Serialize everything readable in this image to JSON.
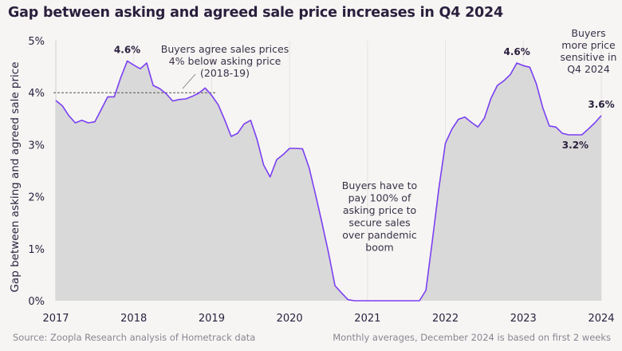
{
  "title": "Gap between asking and agreed sale price increases in Q4 2024",
  "footer": {
    "source": "Source: Zoopla Research analysis of Hometrack data",
    "note": "Monthly averages, December 2024 is based on first 2 weeks"
  },
  "colors": {
    "line": "#7b3ff2",
    "area": "#d9d9d9",
    "grid": "#e4e3e1",
    "reference_line": "#555555",
    "background": "#f6f5f3"
  },
  "chart_data": {
    "type": "area",
    "title": "Gap between asking and agreed sale price increases in Q4 2024",
    "xlabel": "",
    "ylabel": "Gap between asking and agreed sale price",
    "ylim": [
      0,
      5
    ],
    "yticks": [
      0,
      1,
      2,
      3,
      4,
      5
    ],
    "ytick_labels": [
      "0%",
      "1%",
      "2%",
      "3%",
      "4%",
      "5%"
    ],
    "x_ticks": [
      "2017",
      "2018",
      "2019",
      "2020",
      "2021",
      "2022",
      "2023",
      "2024"
    ],
    "grid": "vertical",
    "series": [
      {
        "name": "Gap between asking and agreed sale price (%)",
        "frequency": "monthly",
        "values": [
          3.85,
          3.75,
          3.56,
          3.42,
          3.47,
          3.42,
          3.44,
          3.68,
          3.92,
          3.92,
          4.29,
          4.61,
          4.53,
          4.46,
          4.57,
          4.14,
          4.08,
          3.98,
          3.84,
          3.87,
          3.88,
          3.93,
          3.99,
          4.09,
          3.95,
          3.77,
          3.48,
          3.16,
          3.22,
          3.4,
          3.47,
          3.1,
          2.61,
          2.38,
          2.71,
          2.81,
          2.93,
          2.93,
          2.92,
          2.56,
          2.04,
          1.49,
          0.92,
          0.29,
          0.15,
          0.02,
          0,
          0,
          0,
          0,
          0,
          0,
          0,
          0,
          0,
          0,
          0,
          0.2,
          1.17,
          2.17,
          3.03,
          3.3,
          3.49,
          3.53,
          3.43,
          3.34,
          3.51,
          3.89,
          4.14,
          4.23,
          4.35,
          4.57,
          4.52,
          4.49,
          4.17,
          3.71,
          3.36,
          3.34,
          3.22,
          3.19,
          3.19,
          3.19,
          3.3,
          3.42,
          3.56
        ]
      }
    ],
    "reference_line": {
      "value": 4.0,
      "from_index": 0,
      "to_index": 24
    },
    "data_labels": [
      {
        "index": 11,
        "text": "4.6%",
        "position": "above"
      },
      {
        "index": 71,
        "text": "4.6%",
        "position": "above"
      },
      {
        "index": 80,
        "text": "3.2%",
        "position": "below"
      },
      {
        "index": 84,
        "text": "3.6%",
        "position": "above"
      }
    ],
    "annotations": [
      {
        "lines": [
          "Buyers agree sales prices",
          "4% below asking price",
          "(2018-19)"
        ]
      },
      {
        "lines": [
          "Buyers have to",
          "pay 100% of",
          "asking price to",
          "secure sales",
          "over pandemic",
          "boom"
        ]
      },
      {
        "lines": [
          "Buyers",
          "more price",
          "sensitive in",
          "Q4 2024"
        ]
      }
    ]
  }
}
